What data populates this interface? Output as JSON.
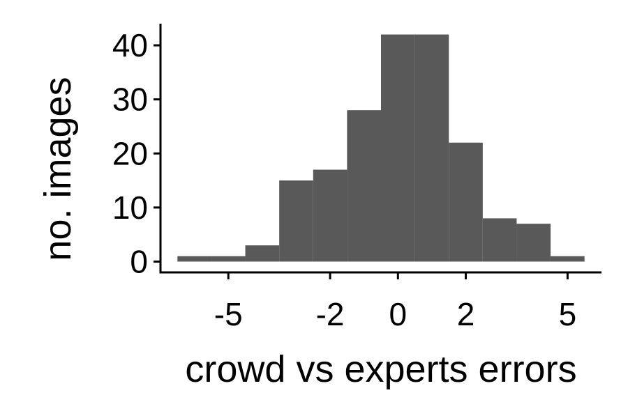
{
  "chart_data": {
    "type": "bar",
    "subtype": "histogram",
    "xlabel": "crowd vs experts errors",
    "ylabel": "no. images",
    "xticks": [
      -5,
      -2,
      0,
      2,
      5
    ],
    "yticks": [
      0,
      10,
      20,
      30,
      40
    ],
    "xlim": [
      -7,
      6
    ],
    "ylim": [
      -2,
      44
    ],
    "bar_color": "#595959",
    "bins": [
      {
        "x0": -6.5,
        "x1": -5.5,
        "count": 1
      },
      {
        "x0": -5.5,
        "x1": -4.5,
        "count": 1
      },
      {
        "x0": -4.5,
        "x1": -3.5,
        "count": 3
      },
      {
        "x0": -3.5,
        "x1": -2.5,
        "count": 15
      },
      {
        "x0": -2.5,
        "x1": -1.5,
        "count": 17
      },
      {
        "x0": -1.5,
        "x1": -0.5,
        "count": 28
      },
      {
        "x0": -0.5,
        "x1": 0.5,
        "count": 42
      },
      {
        "x0": 0.5,
        "x1": 1.5,
        "count": 42
      },
      {
        "x0": 1.5,
        "x1": 2.5,
        "count": 22
      },
      {
        "x0": 2.5,
        "x1": 3.5,
        "count": 8
      },
      {
        "x0": 3.5,
        "x1": 4.5,
        "count": 7
      },
      {
        "x0": 4.5,
        "x1": 5.5,
        "count": 1
      }
    ]
  }
}
